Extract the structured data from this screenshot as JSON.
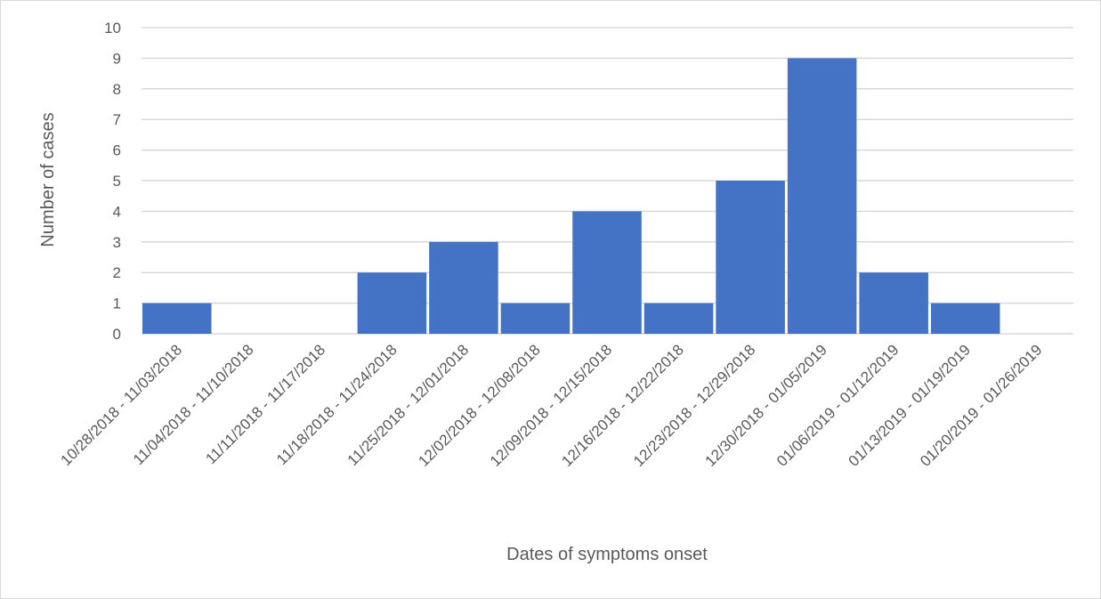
{
  "chart_data": {
    "type": "bar",
    "title": "",
    "xlabel": "Dates of symptoms onset",
    "ylabel": "Number of cases",
    "ylim": [
      0,
      10
    ],
    "yticks": [
      "0",
      "1",
      "2",
      "3",
      "4",
      "5",
      "6",
      "7",
      "8",
      "9",
      "10"
    ],
    "grid": true,
    "legend": "none",
    "categories": [
      "10/28/2018 - 11/03/2018",
      "11/04/2018 - 11/10/2018",
      "11/11/2018 - 11/17/2018",
      "11/18/2018 - 11/24/2018",
      "11/25/2018 - 12/01/2018",
      "12/02/2018 - 12/08/2018",
      "12/09/2018 - 12/15/2018",
      "12/16/2018 - 12/22/2018",
      "12/23/2018 - 12/29/2018",
      "12/30/2018 - 01/05/2019",
      "01/06/2019 - 01/12/2019",
      "01/13/2019 - 01/19/2019",
      "01/20/2019 - 01/26/2019"
    ],
    "values": [
      1,
      0,
      0,
      2,
      3,
      1,
      4,
      1,
      5,
      9,
      2,
      1,
      0
    ],
    "bar_color": "#4472C4",
    "grid_color": "#D9D9D9",
    "text_color": "#595959"
  }
}
